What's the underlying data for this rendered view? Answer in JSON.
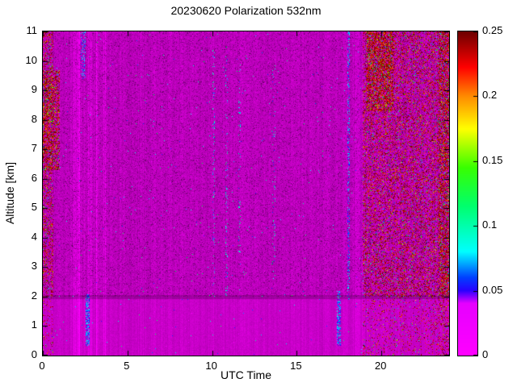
{
  "chart_data": {
    "type": "heatmap",
    "title": "20230620 Polarization 532nm",
    "xlabel": "UTC Time",
    "ylabel": "Altitude [km]",
    "xlim": [
      0,
      24
    ],
    "ylim": [
      0,
      11
    ],
    "xticks": [
      0,
      5,
      10,
      15,
      20
    ],
    "yticks": [
      0,
      1,
      2,
      3,
      4,
      5,
      6,
      7,
      8,
      9,
      10,
      11
    ],
    "colorbar": {
      "vmin": 0,
      "vmax": 0.25,
      "tick_values": [
        0,
        0.05,
        0.1,
        0.15,
        0.2,
        0.25
      ],
      "tick_labels": [
        "0",
        "0.05",
        "0.1",
        "0.15",
        "0.2",
        "0.25"
      ]
    },
    "colormap_stops": [
      [
        0.0,
        "#ff00ff"
      ],
      [
        0.16,
        "#e600ff"
      ],
      [
        0.2,
        "#2a00ff"
      ],
      [
        0.24,
        "#0040ff"
      ],
      [
        0.32,
        "#00ffff"
      ],
      [
        0.46,
        "#00ff6e"
      ],
      [
        0.58,
        "#38ff00"
      ],
      [
        0.7,
        "#ffff00"
      ],
      [
        0.8,
        "#ff8c00"
      ],
      [
        0.89,
        "#ff0000"
      ],
      [
        1.0,
        "#6e0000"
      ]
    ],
    "background": {
      "description": "near-zero depolarization magenta field with speckle noise and faint vertical striping; more uniform bright band below 2 km",
      "base_value": 0.005
    },
    "features": [
      {
        "name": "left-edge-noise",
        "kind": "maroon",
        "x": [
          0,
          0.6
        ],
        "y": [
          0,
          11
        ],
        "density": 0.3
      },
      {
        "name": "left-noise-patch",
        "kind": "maroon",
        "x": [
          0,
          1.0
        ],
        "y": [
          6.3,
          9.7
        ],
        "density": 0.5
      },
      {
        "name": "morning-bright-stripes",
        "kind": "bright-stripes",
        "x": [
          1.85,
          3.7
        ],
        "y": [
          0,
          11
        ],
        "strength": 0.3
      },
      {
        "name": "morning-blue-streak",
        "kind": "blue",
        "x": [
          2.5,
          2.75
        ],
        "y": [
          0.35,
          2.1
        ],
        "density": 0.55
      },
      {
        "name": "morning-top-blue",
        "kind": "blue",
        "x": [
          2.2,
          2.5
        ],
        "y": [
          9.4,
          11
        ],
        "density": 0.25
      },
      {
        "name": "midday-cyan-dots-1",
        "kind": "cyan-dots",
        "x": [
          10.0,
          10.15
        ],
        "y": [
          2,
          10.5
        ],
        "density": 0.1
      },
      {
        "name": "midday-cyan-dots-2",
        "kind": "cyan-dots",
        "x": [
          10.75,
          10.9
        ],
        "y": [
          2,
          10.5
        ],
        "density": 0.09
      },
      {
        "name": "midday-cyan-dots-3",
        "kind": "cyan-dots",
        "x": [
          11.5,
          11.65
        ],
        "y": [
          3,
          10
        ],
        "density": 0.07
      },
      {
        "name": "midday-cyan-dots-4",
        "kind": "cyan-dots",
        "x": [
          13.55,
          13.7
        ],
        "y": [
          2.5,
          10
        ],
        "density": 0.07
      },
      {
        "name": "evening-blue-streak",
        "kind": "blue",
        "x": [
          17.35,
          17.6
        ],
        "y": [
          0.35,
          2.2
        ],
        "density": 0.55
      },
      {
        "name": "evening-blue-line",
        "kind": "blue",
        "x": [
          17.95,
          18.12
        ],
        "y": [
          1.9,
          11
        ],
        "density": 0.3
      },
      {
        "name": "evening-bright-stripes",
        "kind": "bright-stripes",
        "x": [
          18.3,
          18.95
        ],
        "y": [
          0,
          11
        ],
        "strength": 0.15
      },
      {
        "name": "right-region-noise",
        "kind": "maroon",
        "x": [
          18.85,
          24
        ],
        "y": [
          0,
          11
        ],
        "density": 0.3
      },
      {
        "name": "right-dense-patch",
        "kind": "maroon",
        "x": [
          19.1,
          20.7
        ],
        "y": [
          8.3,
          11
        ],
        "density": 0.6
      },
      {
        "name": "right-edge-column",
        "kind": "maroon",
        "x": [
          23.35,
          24
        ],
        "y": [
          0,
          11
        ],
        "density": 0.45
      },
      {
        "name": "boundary-layer-top",
        "kind": "dark-line",
        "x": [
          0,
          24
        ],
        "y": [
          1.92,
          2.06
        ]
      }
    ]
  }
}
